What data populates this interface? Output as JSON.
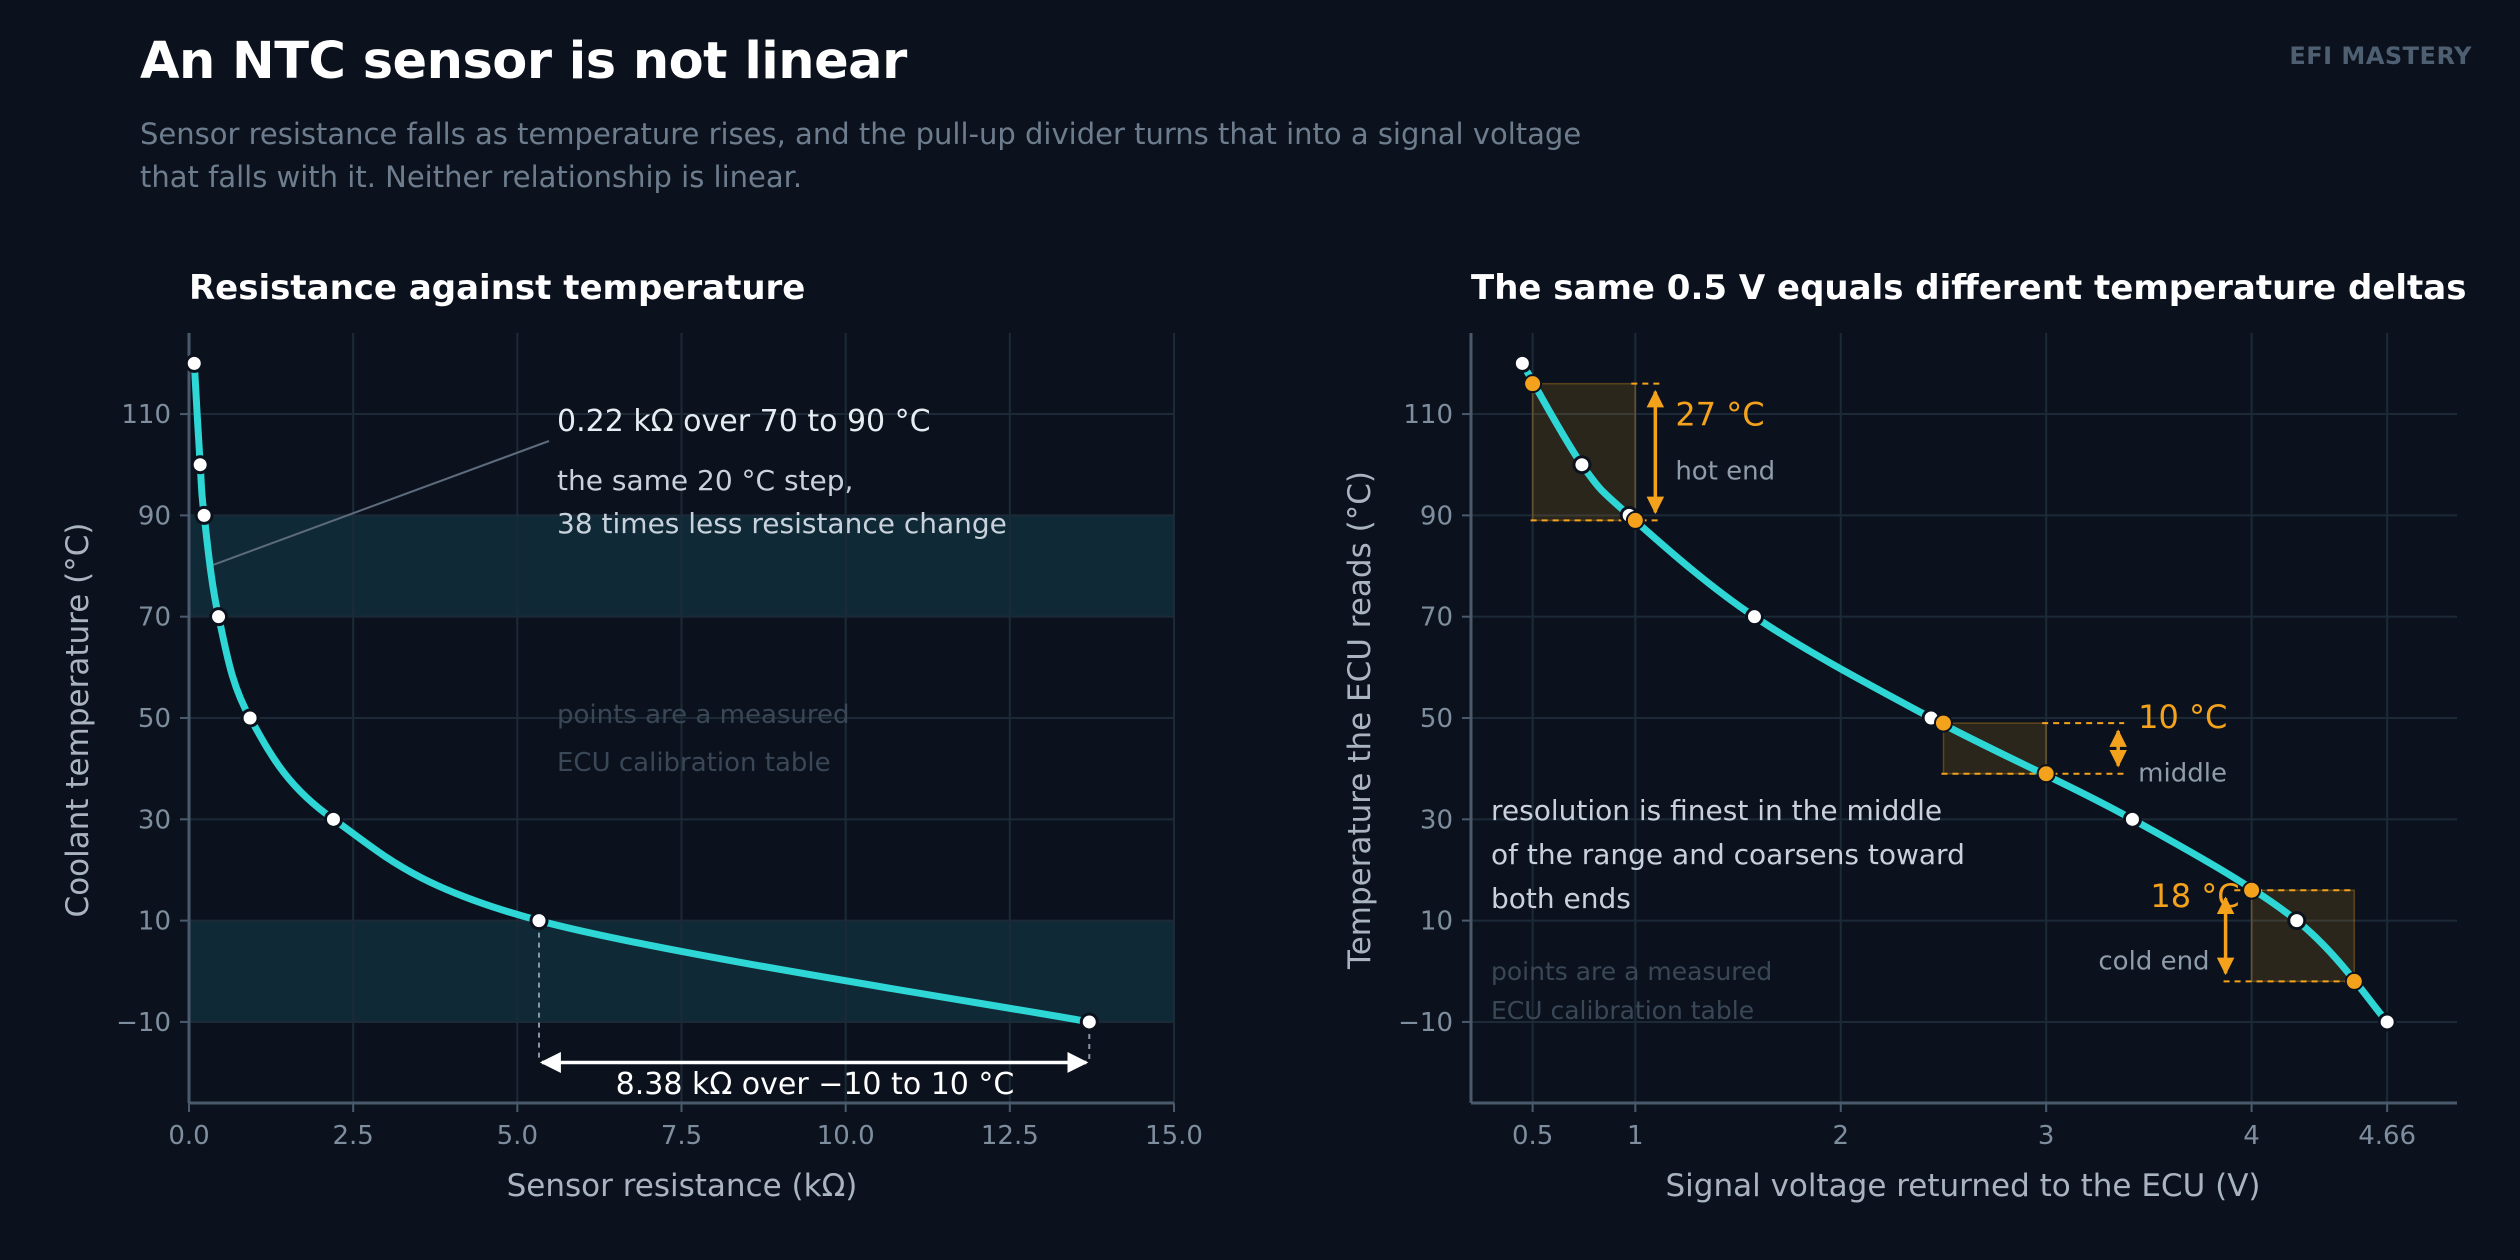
{
  "header": {
    "title": "An NTC sensor is not linear",
    "subtitle_lines": [
      "Sensor resistance falls as temperature rises, and the pull-up divider turns that into a signal voltage",
      "that falls with it. Neither relationship is linear."
    ],
    "brand": "EFI MASTERY"
  },
  "colors": {
    "background": "#0b121d",
    "curve": "#2ed6d6",
    "highlight": "#f4a21c",
    "band": "#0f2a36",
    "grid": "#1c2a38",
    "axis": "#4a5a6c",
    "text_muted": "#7f8e9e"
  },
  "chart_data": [
    {
      "id": "left",
      "type": "line",
      "title": "Resistance against temperature",
      "xlabel": "Sensor resistance  (kΩ)",
      "ylabel": "Coolant temperature  (°C)",
      "xlim": [
        0,
        15
      ],
      "ylim": [
        -26,
        126
      ],
      "xticks": [
        0,
        2.5,
        5,
        7.5,
        10,
        12.5,
        15
      ],
      "xtick_labels": [
        "0.0",
        "2.5",
        "5.0",
        "7.5",
        "10.0",
        "12.5",
        "15.0"
      ],
      "yticks": [
        -10,
        10,
        30,
        50,
        70,
        90,
        110
      ],
      "ytick_labels": [
        "−10",
        "10",
        "30",
        "50",
        "70",
        "90",
        "110"
      ],
      "grid": true,
      "points": [
        {
          "x": 13.71,
          "y": -10
        },
        {
          "x": 5.33,
          "y": 10
        },
        {
          "x": 2.2,
          "y": 30
        },
        {
          "x": 0.93,
          "y": 50
        },
        {
          "x": 0.45,
          "y": 70
        },
        {
          "x": 0.23,
          "y": 90
        },
        {
          "x": 0.17,
          "y": 100
        },
        {
          "x": 0.08,
          "y": 120
        }
      ],
      "bands": [
        {
          "from": 70,
          "to": 90
        },
        {
          "from": -10,
          "to": 10
        }
      ],
      "annotations": {
        "top_value": "0.22 kΩ  over 70 to 90 °C",
        "top_line1": "the same 20 °C step,",
        "top_line2": "38 times less resistance change",
        "bottom_value": "8.38 kΩ  over −10 to 10 °C",
        "note1": "points are a measured",
        "note2": "ECU calibration table"
      }
    },
    {
      "id": "right",
      "type": "line",
      "title": "The same 0.5 V equals different temperature deltas",
      "xlabel": "Signal voltage returned to the ECU  (V)",
      "ylabel": "Temperature the ECU reads  (°C)",
      "xlim": [
        0.2,
        5.0
      ],
      "ylim": [
        -26,
        126
      ],
      "xticks": [
        0.5,
        1,
        2,
        3,
        4,
        4.66
      ],
      "xtick_labels": [
        "0.5",
        "1",
        "2",
        "3",
        "4",
        "4.66"
      ],
      "yticks": [
        -10,
        10,
        30,
        50,
        70,
        90,
        110
      ],
      "ytick_labels": [
        "−10",
        "10",
        "30",
        "50",
        "70",
        "90",
        "110"
      ],
      "grid": true,
      "points": [
        {
          "x": 0.45,
          "y": 120
        },
        {
          "x": 0.74,
          "y": 100
        },
        {
          "x": 0.97,
          "y": 90
        },
        {
          "x": 1.58,
          "y": 70
        },
        {
          "x": 2.44,
          "y": 50
        },
        {
          "x": 3.42,
          "y": 30
        },
        {
          "x": 4.22,
          "y": 10
        },
        {
          "x": 4.66,
          "y": -10
        }
      ],
      "windows": [
        {
          "x0": 0.5,
          "x1": 1.0,
          "t_hi": 116,
          "t_lo": 89,
          "delta": "27 °C",
          "label": "hot end"
        },
        {
          "x0": 2.5,
          "x1": 3.0,
          "t_hi": 49,
          "t_lo": 39,
          "delta": "10 °C",
          "label": "middle"
        },
        {
          "x0": 4.0,
          "x1": 4.5,
          "t_hi": 16,
          "t_lo": -2,
          "delta": "18 °C",
          "label": "cold end"
        }
      ],
      "annotations": {
        "res_line1": "resolution is finest in the middle",
        "res_line2": "of the range and coarsens toward",
        "res_line3": "both ends",
        "note1": "points are a measured",
        "note2": "ECU calibration table"
      }
    }
  ]
}
